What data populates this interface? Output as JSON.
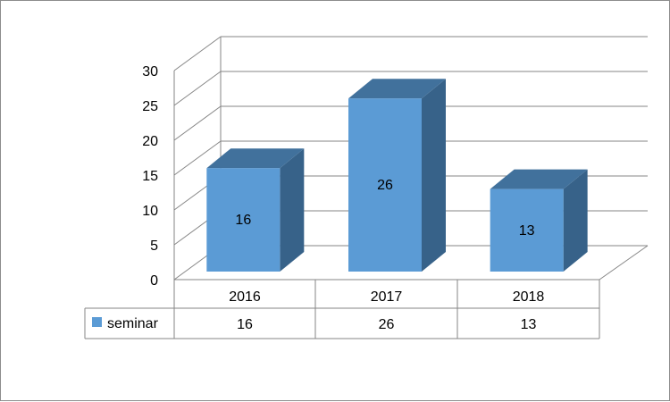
{
  "chart_data": {
    "type": "bar",
    "title": "",
    "xlabel": "",
    "ylabel": "",
    "categories": [
      "2016",
      "2017",
      "2018"
    ],
    "series": [
      {
        "name": "seminar",
        "values": [
          16,
          26,
          13
        ]
      }
    ],
    "y_ticks": [
      "0",
      "5",
      "10",
      "15",
      "20",
      "25",
      "30"
    ],
    "ylim": [
      0,
      30
    ],
    "grid": true,
    "style": "3d-column",
    "data_labels": [
      "16",
      "26",
      "13"
    ],
    "data_table": {
      "rows": [
        {
          "series": "seminar",
          "values": [
            "16",
            "26",
            "13"
          ]
        }
      ]
    },
    "colors": {
      "bar_front": "#5b9bd5",
      "bar_top": "#41719c",
      "bar_side": "#376289",
      "grid": "#868686",
      "legend_key": "#5b9bd5"
    }
  }
}
